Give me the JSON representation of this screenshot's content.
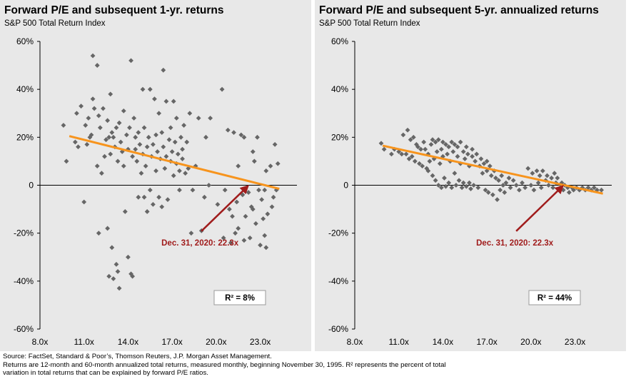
{
  "chart_data": [
    {
      "type": "scatter",
      "title": "Forward P/E and subsequent 1-yr. returns",
      "subtitle": "S&P 500 Total Return Index",
      "x_ticks": [
        "8.0x",
        "11.0x",
        "14.0x",
        "17.0x",
        "20.0x",
        "23.0x"
      ],
      "y_ticks": [
        "60%",
        "40%",
        "20%",
        "0",
        "-20%",
        "-40%",
        "-60%"
      ],
      "xlim": [
        8,
        25.5
      ],
      "ylim": [
        -60,
        60
      ],
      "trendline": {
        "x": [
          10,
          24.3
        ],
        "y": [
          20.5,
          -1.5
        ],
        "color": "#f7941d"
      },
      "annotation": {
        "label": "Dec. 31, 2020: 22.3x",
        "x": 22.3,
        "y": 0.5,
        "color": "#a01c1c"
      },
      "r2": {
        "label": "R² =",
        "value": "8%"
      },
      "point_color": "#666666",
      "points": [
        [
          9.6,
          25
        ],
        [
          9.8,
          10
        ],
        [
          10.4,
          18
        ],
        [
          10.6,
          16
        ],
        [
          10.5,
          30
        ],
        [
          10.8,
          33
        ],
        [
          11.1,
          25
        ],
        [
          11.2,
          17
        ],
        [
          11.4,
          20
        ],
        [
          11.3,
          28
        ],
        [
          11.0,
          -7
        ],
        [
          11.5,
          21
        ],
        [
          11.6,
          36
        ],
        [
          11.6,
          54
        ],
        [
          11.9,
          50
        ],
        [
          11.7,
          32
        ],
        [
          11.9,
          8
        ],
        [
          12.0,
          29
        ],
        [
          12.1,
          24
        ],
        [
          12.3,
          32
        ],
        [
          12.0,
          -20
        ],
        [
          12.2,
          5
        ],
        [
          12.4,
          12
        ],
        [
          12.5,
          19
        ],
        [
          12.6,
          -18
        ],
        [
          12.6,
          27
        ],
        [
          12.7,
          20
        ],
        [
          12.8,
          13
        ],
        [
          12.9,
          22
        ],
        [
          12.8,
          38
        ],
        [
          12.7,
          -38
        ],
        [
          12.9,
          -26
        ],
        [
          13.0,
          -39
        ],
        [
          13.1,
          16
        ],
        [
          13.2,
          24
        ],
        [
          13.0,
          20
        ],
        [
          13.3,
          -36
        ],
        [
          13.2,
          -33
        ],
        [
          13.3,
          10
        ],
        [
          13.4,
          26
        ],
        [
          13.4,
          -43
        ],
        [
          13.5,
          18
        ],
        [
          13.6,
          14
        ],
        [
          13.7,
          8
        ],
        [
          13.7,
          31
        ],
        [
          13.8,
          -11
        ],
        [
          13.9,
          21
        ],
        [
          14.0,
          15
        ],
        [
          14.0,
          -30
        ],
        [
          14.1,
          24
        ],
        [
          14.2,
          52
        ],
        [
          14.2,
          -37
        ],
        [
          14.3,
          12
        ],
        [
          14.3,
          -38
        ],
        [
          14.4,
          28
        ],
        [
          14.5,
          20
        ],
        [
          14.5,
          15
        ],
        [
          14.6,
          10
        ],
        [
          14.7,
          22
        ],
        [
          14.7,
          -5
        ],
        [
          14.8,
          17
        ],
        [
          14.9,
          5
        ],
        [
          15.0,
          40
        ],
        [
          15.0,
          13
        ],
        [
          15.1,
          -5
        ],
        [
          15.1,
          24
        ],
        [
          15.2,
          8
        ],
        [
          15.3,
          16
        ],
        [
          15.3,
          -11
        ],
        [
          15.4,
          20
        ],
        [
          15.5,
          -2
        ],
        [
          15.5,
          40
        ],
        [
          15.6,
          12
        ],
        [
          15.7,
          17
        ],
        [
          15.7,
          -8
        ],
        [
          15.8,
          36
        ],
        [
          15.9,
          6
        ],
        [
          15.9,
          21
        ],
        [
          16.0,
          14
        ],
        [
          16.1,
          -5
        ],
        [
          16.1,
          30
        ],
        [
          16.2,
          11
        ],
        [
          16.3,
          22
        ],
        [
          16.3,
          -9
        ],
        [
          16.4,
          48
        ],
        [
          16.4,
          16
        ],
        [
          16.5,
          7
        ],
        [
          16.6,
          12
        ],
        [
          16.6,
          35
        ],
        [
          16.7,
          -6
        ],
        [
          16.8,
          19
        ],
        [
          16.9,
          10
        ],
        [
          16.9,
          24
        ],
        [
          17.0,
          14
        ],
        [
          17.1,
          4
        ],
        [
          17.1,
          35
        ],
        [
          17.2,
          18
        ],
        [
          17.3,
          9
        ],
        [
          17.3,
          28
        ],
        [
          17.4,
          13
        ],
        [
          17.5,
          6
        ],
        [
          17.5,
          -2
        ],
        [
          17.6,
          20
        ],
        [
          17.7,
          11
        ],
        [
          17.7,
          15
        ],
        [
          17.8,
          25
        ],
        [
          17.9,
          5
        ],
        [
          18.0,
          18
        ],
        [
          18.1,
          7
        ],
        [
          18.2,
          30
        ],
        [
          18.3,
          -20
        ],
        [
          18.4,
          -2
        ],
        [
          18.6,
          8
        ],
        [
          18.8,
          28
        ],
        [
          19.0,
          -19
        ],
        [
          19.2,
          -5
        ],
        [
          19.3,
          20
        ],
        [
          19.5,
          0
        ],
        [
          19.6,
          28
        ],
        [
          20.1,
          -8
        ],
        [
          20.4,
          40
        ],
        [
          20.5,
          -22
        ],
        [
          20.6,
          -2
        ],
        [
          20.8,
          23
        ],
        [
          20.9,
          -10
        ],
        [
          21.0,
          -24
        ],
        [
          21.1,
          -13
        ],
        [
          21.2,
          22
        ],
        [
          21.3,
          -20
        ],
        [
          21.4,
          -7
        ],
        [
          21.5,
          -18
        ],
        [
          21.5,
          8
        ],
        [
          21.7,
          21
        ],
        [
          21.8,
          -4
        ],
        [
          21.9,
          20
        ],
        [
          22.0,
          -13
        ],
        [
          22.2,
          -3
        ],
        [
          22.3,
          -22
        ],
        [
          22.4,
          -9
        ],
        [
          22.5,
          14
        ],
        [
          22.6,
          10
        ],
        [
          22.7,
          -16
        ],
        [
          22.8,
          20
        ],
        [
          22.9,
          -2
        ],
        [
          23.0,
          -25
        ],
        [
          23.1,
          -6
        ],
        [
          23.2,
          -14
        ],
        [
          23.3,
          -2
        ],
        [
          23.4,
          6
        ],
        [
          23.5,
          -12
        ],
        [
          23.7,
          8
        ],
        [
          23.8,
          -9
        ],
        [
          23.9,
          -5
        ],
        [
          24.0,
          17
        ],
        [
          24.1,
          -2
        ],
        [
          24.2,
          9
        ],
        [
          23.3,
          -21
        ],
        [
          23.4,
          -26
        ],
        [
          22.5,
          -10
        ],
        [
          21.9,
          -23
        ]
      ]
    },
    {
      "type": "scatter",
      "title": "Forward P/E and subsequent 5-yr. annualized returns",
      "subtitle": "S&P 500 Total Return Index",
      "x_ticks": [
        "8.0x",
        "11.0x",
        "14.0x",
        "17.0x",
        "20.0x",
        "23.0x"
      ],
      "y_ticks": [
        "60%",
        "40%",
        "20%",
        "0",
        "-20%",
        "-40%",
        "-60%"
      ],
      "xlim": [
        8,
        25.5
      ],
      "ylim": [
        -60,
        60
      ],
      "trendline": {
        "x": [
          9.9,
          24.9
        ],
        "y": [
          16.5,
          -3.5
        ],
        "color": "#f7941d"
      },
      "annotation": {
        "label": "Dec. 31, 2020: 22.3x",
        "x": 22.3,
        "y": 0.5,
        "color": "#a01c1c"
      },
      "r2": {
        "label": "R² =",
        "value": "44%"
      },
      "point_color": "#666666",
      "points": [
        [
          9.8,
          17.5
        ],
        [
          10.0,
          15
        ],
        [
          10.5,
          13
        ],
        [
          10.7,
          15
        ],
        [
          11.0,
          14
        ],
        [
          11.2,
          13
        ],
        [
          11.3,
          21
        ],
        [
          11.5,
          13
        ],
        [
          11.6,
          23
        ],
        [
          11.7,
          11
        ],
        [
          11.8,
          19
        ],
        [
          11.9,
          12
        ],
        [
          12.0,
          20
        ],
        [
          12.1,
          10
        ],
        [
          12.2,
          17
        ],
        [
          12.3,
          16
        ],
        [
          12.4,
          9
        ],
        [
          12.5,
          15
        ],
        [
          12.6,
          8
        ],
        [
          12.7,
          18
        ],
        [
          12.8,
          15
        ],
        [
          12.9,
          7
        ],
        [
          13.0,
          13
        ],
        [
          13.0,
          6
        ],
        [
          13.1,
          10
        ],
        [
          13.2,
          17
        ],
        [
          13.3,
          19
        ],
        [
          13.3,
          4
        ],
        [
          13.4,
          11
        ],
        [
          13.5,
          18
        ],
        [
          13.5,
          2
        ],
        [
          13.6,
          14
        ],
        [
          13.7,
          0
        ],
        [
          13.7,
          19
        ],
        [
          13.8,
          9
        ],
        [
          13.9,
          15
        ],
        [
          13.9,
          -1
        ],
        [
          14.0,
          12
        ],
        [
          14.0,
          18
        ],
        [
          14.1,
          3
        ],
        [
          14.2,
          17
        ],
        [
          14.2,
          -0.5
        ],
        [
          14.3,
          13
        ],
        [
          14.4,
          16
        ],
        [
          14.4,
          1
        ],
        [
          14.5,
          10
        ],
        [
          14.6,
          18
        ],
        [
          14.6,
          -1
        ],
        [
          14.7,
          14
        ],
        [
          14.8,
          5
        ],
        [
          14.8,
          17
        ],
        [
          14.9,
          0
        ],
        [
          15.0,
          12
        ],
        [
          15.0,
          16
        ],
        [
          15.1,
          2
        ],
        [
          15.2,
          9
        ],
        [
          15.2,
          18
        ],
        [
          15.3,
          -1
        ],
        [
          15.4,
          14
        ],
        [
          15.4,
          1
        ],
        [
          15.5,
          11
        ],
        [
          15.6,
          16
        ],
        [
          15.6,
          -0.5
        ],
        [
          15.7,
          13
        ],
        [
          15.8,
          1
        ],
        [
          15.8,
          8
        ],
        [
          15.9,
          -1.5
        ],
        [
          16.0,
          12
        ],
        [
          16.0,
          15
        ],
        [
          16.1,
          0
        ],
        [
          16.2,
          10
        ],
        [
          16.3,
          13
        ],
        [
          16.4,
          -1
        ],
        [
          16.5,
          8
        ],
        [
          16.6,
          11
        ],
        [
          16.7,
          5
        ],
        [
          16.8,
          9
        ],
        [
          16.9,
          -2
        ],
        [
          17.0,
          6
        ],
        [
          17.0,
          10
        ],
        [
          17.1,
          -3
        ],
        [
          17.2,
          8
        ],
        [
          17.3,
          4
        ],
        [
          17.4,
          -4
        ],
        [
          17.5,
          6
        ],
        [
          17.6,
          3
        ],
        [
          17.7,
          -6
        ],
        [
          17.8,
          2
        ],
        [
          17.9,
          -2
        ],
        [
          18.0,
          4
        ],
        [
          18.1,
          0
        ],
        [
          18.2,
          -3
        ],
        [
          18.3,
          1
        ],
        [
          18.5,
          3
        ],
        [
          18.6,
          -1
        ],
        [
          18.8,
          2
        ],
        [
          19.0,
          0
        ],
        [
          19.2,
          -2
        ],
        [
          19.4,
          1
        ],
        [
          19.6,
          -1
        ],
        [
          19.8,
          7
        ],
        [
          20.0,
          0
        ],
        [
          20.1,
          5
        ],
        [
          20.2,
          -2
        ],
        [
          20.4,
          6
        ],
        [
          20.5,
          1
        ],
        [
          20.6,
          4
        ],
        [
          20.7,
          -1
        ],
        [
          20.8,
          6
        ],
        [
          21.0,
          2
        ],
        [
          21.1,
          4
        ],
        [
          21.2,
          0
        ],
        [
          21.4,
          3
        ],
        [
          21.5,
          -1
        ],
        [
          21.6,
          5
        ],
        [
          21.7,
          1
        ],
        [
          21.8,
          3
        ],
        [
          22.0,
          -1
        ],
        [
          22.1,
          1
        ],
        [
          22.2,
          -2
        ],
        [
          22.3,
          0
        ],
        [
          22.5,
          -1
        ],
        [
          22.6,
          -3
        ],
        [
          22.8,
          -1
        ],
        [
          22.9,
          -2
        ],
        [
          23.1,
          -1
        ],
        [
          23.3,
          -2
        ],
        [
          23.5,
          -1
        ],
        [
          23.7,
          -2
        ],
        [
          23.9,
          -1
        ],
        [
          24.1,
          -2
        ],
        [
          24.3,
          -1
        ],
        [
          24.5,
          -2
        ],
        [
          24.8,
          -2
        ]
      ]
    }
  ],
  "footer": {
    "line1": "Source: FactSet, Standard & Poor’s, Thomson Reuters, J.P. Morgan Asset Management.",
    "line2": "Returns are 12-month and 60-month annualized total returns, measured monthly, beginning November 30, 1995. R² represents the percent of total",
    "line3": "variation in total returns that can be explained by forward P/E ratios."
  }
}
